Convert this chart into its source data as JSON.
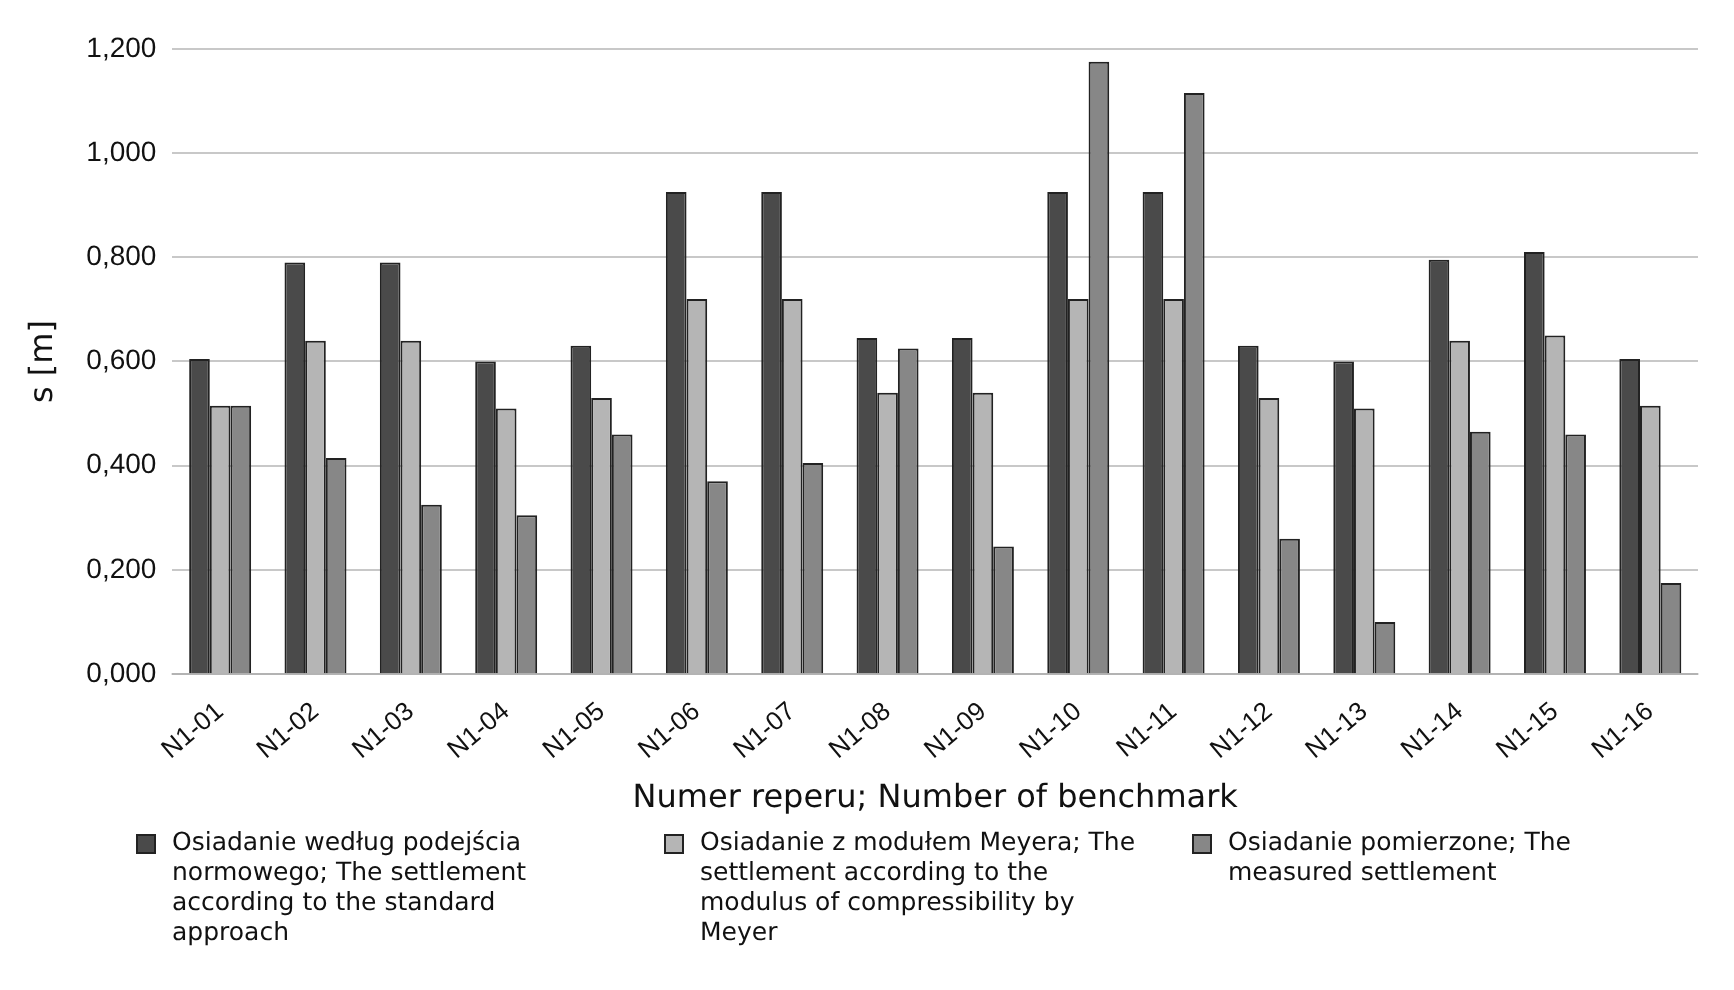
{
  "chart_data": {
    "type": "bar",
    "ylabel": "s [m]",
    "xlabel": "Numer reperu; Number of benchmark",
    "categories": [
      "N1-01",
      "N1-02",
      "N1-03",
      "N1-04",
      "N1-05",
      "N1-06",
      "N1-07",
      "N1-08",
      "N1-09",
      "N1-10",
      "N1-11",
      "N1-12",
      "N1-13",
      "N1-14",
      "N1-15",
      "N1-16"
    ],
    "series": [
      {
        "name": "Osiadanie według podejścia normowego; The settlement according to the standard approach",
        "color": "#4a4a4a",
        "values": [
          0.605,
          0.79,
          0.79,
          0.6,
          0.63,
          0.925,
          0.925,
          0.645,
          0.645,
          0.925,
          0.925,
          0.63,
          0.6,
          0.795,
          0.81,
          0.605
        ]
      },
      {
        "name": "Osiadanie z modułem Meyera; The settlement according to the modulus of compressibility by Meyer",
        "color": "#b5b5b5",
        "values": [
          0.515,
          0.64,
          0.64,
          0.51,
          0.53,
          0.72,
          0.72,
          0.54,
          0.54,
          0.72,
          0.72,
          0.53,
          0.51,
          0.64,
          0.65,
          0.515
        ]
      },
      {
        "name": "Osiadanie pomierzone; The measured settlement",
        "color": "#878787",
        "values": [
          0.515,
          0.415,
          0.325,
          0.305,
          0.46,
          0.37,
          0.405,
          0.625,
          0.245,
          1.175,
          1.115,
          0.26,
          0.1,
          0.465,
          0.46,
          0.175
        ]
      }
    ],
    "ylim": [
      0,
      1.2
    ],
    "yticks": [
      {
        "value": 0,
        "label": "0,000"
      },
      {
        "value": 0.2,
        "label": "0,200"
      },
      {
        "value": 0.4,
        "label": "0,400"
      },
      {
        "value": 0.6,
        "label": "0,600"
      },
      {
        "value": 0.8,
        "label": "0,800"
      },
      {
        "value": 1,
        "label": "1,000"
      },
      {
        "value": 1.2,
        "label": "1,200"
      }
    ],
    "grid": "y",
    "legend": "bottom"
  }
}
